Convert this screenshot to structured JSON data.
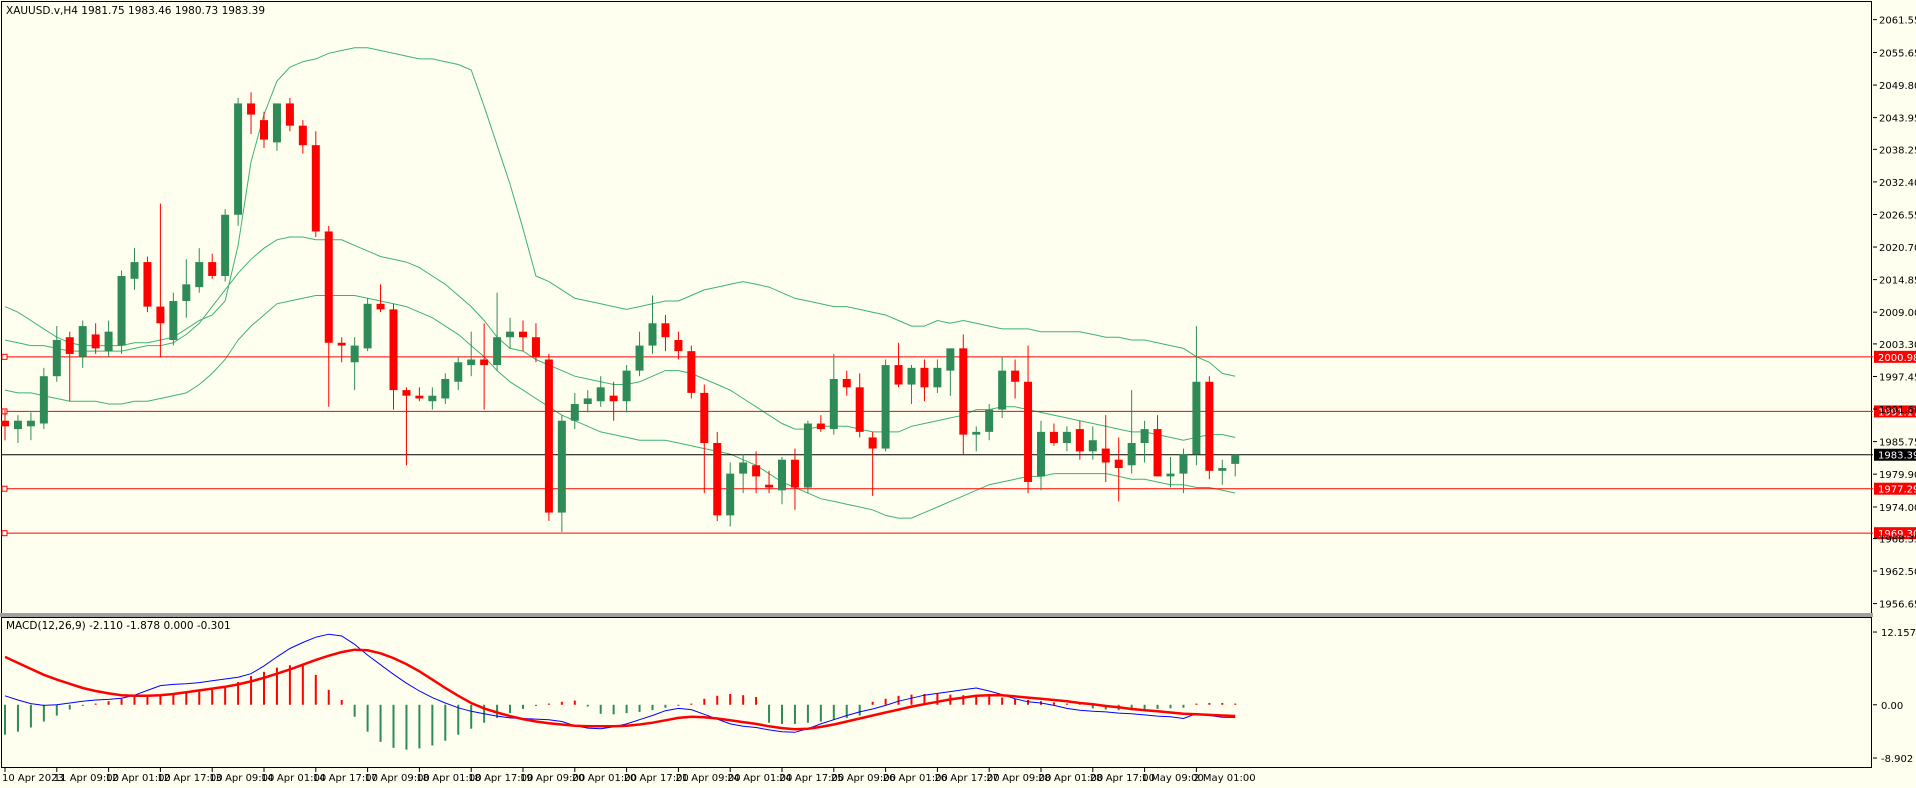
{
  "header": {
    "symbol_line": "XAUUSD.v,H4  1981.75 1983.46 1980.73 1983.39"
  },
  "macd": {
    "title": "MACD(12,26,9) -2.110 -1.878 0.000 -0.301",
    "ticks": [
      "12.157",
      "0.00",
      "-8.902"
    ]
  },
  "colors": {
    "background": "#fffff0",
    "bull": "#2e8b57",
    "bear": "#ff0000",
    "bands": "#3cb371",
    "macd_line": "#0000ff",
    "signal_line": "#ff0000",
    "level_line": "#ff0000",
    "current_line": "#000000"
  },
  "price_axis_ticks": [
    "2061.55",
    "2055.65",
    "2049.80",
    "2043.95",
    "2038.25",
    "2032.40",
    "2026.55",
    "2020.70",
    "2014.85",
    "2009.00",
    "2003.30",
    "1997.45",
    "1991.60",
    "1985.75",
    "1979.90",
    "1974.00",
    "1968.35",
    "1962.50",
    "1956.65"
  ],
  "time_axis_labels": [
    "10 Apr 2023",
    "11 Apr 09:00",
    "12 Apr 01:00",
    "12 Apr 17:00",
    "13 Apr 09:00",
    "14 Apr 01:00",
    "14 Apr 17:00",
    "17 Apr 09:00",
    "18 Apr 01:00",
    "18 Apr 17:00",
    "19 Apr 09:00",
    "20 Apr 01:00",
    "20 Apr 17:00",
    "21 Apr 09:00",
    "24 Apr 01:00",
    "24 Apr 17:00",
    "25 Apr 09:00",
    "26 Apr 01:00",
    "26 Apr 17:00",
    "27 Apr 09:00",
    "28 Apr 01:00",
    "28 Apr 17:00",
    "1 May 09:00",
    "2 May 01:00"
  ],
  "levels": [
    {
      "label": "2000.98",
      "value": 2000.98
    },
    {
      "label": "1991.17",
      "value": 1991.17
    },
    {
      "label": "1977.29",
      "value": 1977.29
    },
    {
      "label": "1969.30",
      "value": 1969.3
    }
  ],
  "current_price": {
    "label": "1983.39",
    "value": 1983.39
  },
  "chart_data": {
    "type": "candlestick",
    "symbol": "XAUUSD.v",
    "timeframe": "H4",
    "ylim": [
      1955.5,
      2064.0
    ],
    "macd_ylim": [
      -9.9,
      14.0
    ],
    "candles": [
      {
        "o": 1989.5,
        "h": 1991.5,
        "l": 1986.0,
        "c": 1988.5
      },
      {
        "o": 1988.0,
        "h": 1990.5,
        "l": 1985.5,
        "c": 1989.5
      },
      {
        "o": 1988.5,
        "h": 1991.0,
        "l": 1986.0,
        "c": 1989.5
      },
      {
        "o": 1989.0,
        "h": 1999.0,
        "l": 1988.0,
        "c": 1997.5
      },
      {
        "o": 1997.5,
        "h": 2006.5,
        "l": 1996.5,
        "c": 2004.0
      },
      {
        "o": 2004.5,
        "h": 2005.5,
        "l": 1993.0,
        "c": 2001.5
      },
      {
        "o": 2001.0,
        "h": 2007.5,
        "l": 1999.0,
        "c": 2006.5
      },
      {
        "o": 2005.0,
        "h": 2007.0,
        "l": 2001.5,
        "c": 2002.5
      },
      {
        "o": 2002.0,
        "h": 2007.5,
        "l": 2001.0,
        "c": 2005.5
      },
      {
        "o": 2003.0,
        "h": 2016.5,
        "l": 2001.5,
        "c": 2015.5
      },
      {
        "o": 2015.0,
        "h": 2020.5,
        "l": 2013.0,
        "c": 2018.0
      },
      {
        "o": 2018.0,
        "h": 2019.0,
        "l": 2009.0,
        "c": 2010.0
      },
      {
        "o": 2010.0,
        "h": 2028.5,
        "l": 2001.0,
        "c": 2007.0
      },
      {
        "o": 2004.0,
        "h": 2012.5,
        "l": 2003.0,
        "c": 2011.0
      },
      {
        "o": 2011.0,
        "h": 2018.5,
        "l": 2008.0,
        "c": 2014.0
      },
      {
        "o": 2013.5,
        "h": 2020.5,
        "l": 2012.5,
        "c": 2018.0
      },
      {
        "o": 2018.0,
        "h": 2019.5,
        "l": 2015.0,
        "c": 2015.5
      },
      {
        "o": 2015.5,
        "h": 2027.5,
        "l": 2014.5,
        "c": 2026.5
      },
      {
        "o": 2026.5,
        "h": 2047.5,
        "l": 2024.5,
        "c": 2046.5
      },
      {
        "o": 2046.5,
        "h": 2048.5,
        "l": 2041.0,
        "c": 2044.5
      },
      {
        "o": 2043.5,
        "h": 2045.0,
        "l": 2038.5,
        "c": 2040.0
      },
      {
        "o": 2039.5,
        "h": 2046.5,
        "l": 2038.0,
        "c": 2046.5
      },
      {
        "o": 2046.5,
        "h": 2047.5,
        "l": 2041.5,
        "c": 2042.5
      },
      {
        "o": 2042.5,
        "h": 2043.5,
        "l": 2037.5,
        "c": 2039.0
      },
      {
        "o": 2039.0,
        "h": 2041.5,
        "l": 2022.5,
        "c": 2023.5
      },
      {
        "o": 2023.5,
        "h": 2024.5,
        "l": 1992.0,
        "c": 2003.5
      },
      {
        "o": 2003.5,
        "h": 2004.5,
        "l": 2000.0,
        "c": 2003.0
      },
      {
        "o": 2000.0,
        "h": 2004.5,
        "l": 1995.0,
        "c": 2003.0
      },
      {
        "o": 2002.5,
        "h": 2011.5,
        "l": 2002.0,
        "c": 2010.5
      },
      {
        "o": 2010.5,
        "h": 2014.0,
        "l": 2009.0,
        "c": 2009.5
      },
      {
        "o": 2009.5,
        "h": 2010.5,
        "l": 1991.5,
        "c": 1995.0
      },
      {
        "o": 1995.0,
        "h": 1995.5,
        "l": 1981.5,
        "c": 1994.0
      },
      {
        "o": 1994.0,
        "h": 1995.5,
        "l": 1993.0,
        "c": 1993.5
      },
      {
        "o": 1993.0,
        "h": 1995.5,
        "l": 1991.5,
        "c": 1994.0
      },
      {
        "o": 1993.5,
        "h": 1998.0,
        "l": 1992.5,
        "c": 1997.0
      },
      {
        "o": 1996.5,
        "h": 2001.0,
        "l": 1995.0,
        "c": 2000.0
      },
      {
        "o": 1999.5,
        "h": 2005.5,
        "l": 1997.5,
        "c": 2000.5
      },
      {
        "o": 2000.5,
        "h": 2007.0,
        "l": 1991.5,
        "c": 1999.5
      },
      {
        "o": 1999.5,
        "h": 2012.5,
        "l": 1998.5,
        "c": 2004.5
      },
      {
        "o": 2004.5,
        "h": 2008.0,
        "l": 2002.5,
        "c": 2005.5
      },
      {
        "o": 2005.5,
        "h": 2007.5,
        "l": 2002.0,
        "c": 2004.5
      },
      {
        "o": 2004.5,
        "h": 2007.0,
        "l": 2000.0,
        "c": 2001.0
      },
      {
        "o": 2000.5,
        "h": 2001.5,
        "l": 1971.5,
        "c": 1973.0
      },
      {
        "o": 1973.0,
        "h": 1990.5,
        "l": 1969.5,
        "c": 1989.5
      },
      {
        "o": 1989.5,
        "h": 1994.5,
        "l": 1988.0,
        "c": 1992.5
      },
      {
        "o": 1992.5,
        "h": 1995.0,
        "l": 1991.0,
        "c": 1993.5
      },
      {
        "o": 1993.0,
        "h": 1997.5,
        "l": 1992.0,
        "c": 1995.5
      },
      {
        "o": 1994.0,
        "h": 1996.5,
        "l": 1989.5,
        "c": 1993.0
      },
      {
        "o": 1993.0,
        "h": 1999.5,
        "l": 1991.0,
        "c": 1998.5
      },
      {
        "o": 1998.5,
        "h": 2005.5,
        "l": 1997.5,
        "c": 2003.0
      },
      {
        "o": 2003.0,
        "h": 2012.0,
        "l": 2001.5,
        "c": 2007.0
      },
      {
        "o": 2007.0,
        "h": 2008.5,
        "l": 2002.0,
        "c": 2004.5
      },
      {
        "o": 2004.0,
        "h": 2005.5,
        "l": 2000.5,
        "c": 2002.0
      },
      {
        "o": 2002.0,
        "h": 2003.0,
        "l": 1993.5,
        "c": 1994.5
      },
      {
        "o": 1994.5,
        "h": 1996.0,
        "l": 1976.5,
        "c": 1985.5
      },
      {
        "o": 1985.5,
        "h": 1987.5,
        "l": 1971.5,
        "c": 1972.5
      },
      {
        "o": 1972.5,
        "h": 1982.0,
        "l": 1970.5,
        "c": 1980.0
      },
      {
        "o": 1980.0,
        "h": 1983.5,
        "l": 1976.5,
        "c": 1982.0
      },
      {
        "o": 1981.5,
        "h": 1984.0,
        "l": 1976.5,
        "c": 1979.5
      },
      {
        "o": 1978.0,
        "h": 1980.5,
        "l": 1976.5,
        "c": 1977.5
      },
      {
        "o": 1977.0,
        "h": 1983.0,
        "l": 1974.5,
        "c": 1982.5
      },
      {
        "o": 1982.5,
        "h": 1984.5,
        "l": 1973.5,
        "c": 1977.5
      },
      {
        "o": 1977.5,
        "h": 1989.5,
        "l": 1976.5,
        "c": 1989.0
      },
      {
        "o": 1989.0,
        "h": 1990.5,
        "l": 1987.5,
        "c": 1988.0
      },
      {
        "o": 1988.0,
        "h": 2001.5,
        "l": 1987.0,
        "c": 1997.0
      },
      {
        "o": 1997.0,
        "h": 1998.5,
        "l": 1994.0,
        "c": 1995.5
      },
      {
        "o": 1995.5,
        "h": 1998.0,
        "l": 1986.5,
        "c": 1987.5
      },
      {
        "o": 1986.5,
        "h": 1987.5,
        "l": 1976.0,
        "c": 1984.5
      },
      {
        "o": 1984.5,
        "h": 2000.5,
        "l": 1984.0,
        "c": 1999.5
      },
      {
        "o": 1999.5,
        "h": 2003.5,
        "l": 1995.5,
        "c": 1996.0
      },
      {
        "o": 1996.0,
        "h": 1999.5,
        "l": 1992.5,
        "c": 1999.0
      },
      {
        "o": 1999.0,
        "h": 2000.5,
        "l": 1993.0,
        "c": 1995.5
      },
      {
        "o": 1995.5,
        "h": 2000.5,
        "l": 1994.5,
        "c": 1999.0
      },
      {
        "o": 1998.5,
        "h": 2002.5,
        "l": 1994.0,
        "c": 2002.5
      },
      {
        "o": 2002.5,
        "h": 2005.0,
        "l": 1983.5,
        "c": 1987.0
      },
      {
        "o": 1987.0,
        "h": 1988.5,
        "l": 1984.0,
        "c": 1987.5
      },
      {
        "o": 1987.5,
        "h": 1992.5,
        "l": 1986.0,
        "c": 1991.5
      },
      {
        "o": 1991.5,
        "h": 2001.0,
        "l": 1990.0,
        "c": 1998.5
      },
      {
        "o": 1998.5,
        "h": 2000.5,
        "l": 1993.5,
        "c": 1996.5
      },
      {
        "o": 1996.5,
        "h": 2003.0,
        "l": 1976.5,
        "c": 1978.5
      },
      {
        "o": 1979.5,
        "h": 1989.5,
        "l": 1977.0,
        "c": 1987.5
      },
      {
        "o": 1987.5,
        "h": 1989.0,
        "l": 1985.0,
        "c": 1985.5
      },
      {
        "o": 1985.5,
        "h": 1988.5,
        "l": 1984.0,
        "c": 1987.5
      },
      {
        "o": 1988.0,
        "h": 1989.5,
        "l": 1982.5,
        "c": 1984.0
      },
      {
        "o": 1984.0,
        "h": 1988.5,
        "l": 1982.5,
        "c": 1986.0
      },
      {
        "o": 1984.5,
        "h": 1990.5,
        "l": 1978.5,
        "c": 1982.0
      },
      {
        "o": 1982.5,
        "h": 1986.5,
        "l": 1975.0,
        "c": 1981.0
      },
      {
        "o": 1981.5,
        "h": 1995.0,
        "l": 1980.0,
        "c": 1985.5
      },
      {
        "o": 1985.5,
        "h": 1989.5,
        "l": 1982.0,
        "c": 1988.0
      },
      {
        "o": 1988.0,
        "h": 1990.5,
        "l": 1980.0,
        "c": 1979.5
      },
      {
        "o": 1979.5,
        "h": 1983.0,
        "l": 1977.5,
        "c": 1980.0
      },
      {
        "o": 1980.0,
        "h": 1984.5,
        "l": 1976.5,
        "c": 1983.5
      },
      {
        "o": 1983.5,
        "h": 2006.5,
        "l": 1981.5,
        "c": 1996.5
      },
      {
        "o": 1996.5,
        "h": 1997.5,
        "l": 1979.0,
        "c": 1980.5
      },
      {
        "o": 1980.5,
        "h": 1982.5,
        "l": 1978.0,
        "c": 1981.0
      },
      {
        "o": 1981.75,
        "h": 1983.46,
        "l": 1979.5,
        "c": 1983.39
      }
    ],
    "bollinger_upper": [
      2010.0,
      2009.0,
      2007.5,
      2006.0,
      2004.5,
      2003.5,
      2003.0,
      2003.0,
      2003.0,
      2003.0,
      2003.5,
      2003.5,
      2004.0,
      2004.5,
      2006.0,
      2007.5,
      2008.5,
      2011.0,
      2021.0,
      2036.0,
      2044.5,
      2050.5,
      2053.0,
      2054.0,
      2054.5,
      2055.5,
      2056.0,
      2056.5,
      2056.5,
      2056.0,
      2055.5,
      2055.0,
      2054.5,
      2054.5,
      2054.0,
      2053.5,
      2052.5,
      2046.0,
      2039.0,
      2032.0,
      2024.0,
      2015.5,
      2014.5,
      2013.0,
      2011.5,
      2011.0,
      2010.5,
      2010.0,
      2009.5,
      2010.0,
      2010.5,
      2011.0,
      2011.0,
      2012.0,
      2013.0,
      2013.5,
      2014.0,
      2014.5,
      2014.0,
      2013.5,
      2012.5,
      2011.5,
      2011.0,
      2010.5,
      2010.0,
      2010.0,
      2009.5,
      2009.0,
      2008.5,
      2007.5,
      2006.5,
      2006.5,
      2007.5,
      2007.0,
      2007.5,
      2007.0,
      2006.5,
      2006.0,
      2006.0,
      2006.0,
      2005.5,
      2005.5,
      2005.5,
      2005.5,
      2005.0,
      2004.5,
      2004.5,
      2004.0,
      2004.0,
      2003.5,
      2003.0,
      2002.5,
      2001.0,
      2000.0,
      1998.0,
      1997.5
    ],
    "bollinger_middle": [
      2004.0,
      2003.5,
      2003.0,
      2003.0,
      2002.5,
      2002.0,
      2002.0,
      2002.0,
      2002.0,
      2002.0,
      2002.5,
      2003.0,
      2003.0,
      2003.5,
      2005.0,
      2007.0,
      2010.0,
      2013.0,
      2016.0,
      2018.5,
      2020.5,
      2022.0,
      2022.5,
      2022.5,
      2022.0,
      2022.0,
      2022.0,
      2021.0,
      2020.0,
      2019.0,
      2018.5,
      2018.0,
      2017.0,
      2015.5,
      2014.0,
      2012.0,
      2010.0,
      2007.5,
      2004.5,
      2002.5,
      2002.0,
      2000.5,
      1999.5,
      1998.5,
      1997.5,
      1997.0,
      1996.5,
      1996.0,
      1996.0,
      1996.5,
      1997.5,
      1998.5,
      1998.5,
      1998.0,
      1997.0,
      1996.0,
      1995.0,
      1993.5,
      1992.0,
      1990.5,
      1989.0,
      1988.0,
      1988.0,
      1988.5,
      1988.5,
      1988.5,
      1988.0,
      1987.5,
      1987.5,
      1987.5,
      1988.5,
      1989.0,
      1989.5,
      1990.0,
      1990.5,
      1991.5,
      1991.5,
      1992.0,
      1992.0,
      1991.5,
      1991.0,
      1990.5,
      1990.0,
      1989.5,
      1989.0,
      1988.5,
      1988.0,
      1987.5,
      1987.5,
      1987.0,
      1986.5,
      1986.0,
      1986.5,
      1987.0,
      1987.0,
      1986.5
    ],
    "bollinger_lower": [
      1995.0,
      1994.5,
      1994.5,
      1994.0,
      1993.5,
      1993.0,
      1993.0,
      1993.0,
      1992.5,
      1992.5,
      1993.0,
      1993.0,
      1993.5,
      1994.0,
      1994.5,
      1996.0,
      1998.0,
      2000.5,
      2004.0,
      2006.5,
      2008.5,
      2010.5,
      2011.0,
      2011.5,
      2012.0,
      2012.0,
      2012.0,
      2012.0,
      2011.5,
      2011.0,
      2010.5,
      2010.0,
      2009.0,
      2008.0,
      2006.5,
      2005.0,
      2003.0,
      2001.0,
      1998.5,
      1996.5,
      1995.0,
      1993.5,
      1992.0,
      1990.5,
      1989.5,
      1988.5,
      1987.5,
      1987.0,
      1986.5,
      1986.0,
      1986.0,
      1986.0,
      1985.5,
      1985.0,
      1984.5,
      1984.0,
      1983.5,
      1982.5,
      1981.5,
      1980.0,
      1978.5,
      1977.5,
      1976.5,
      1975.5,
      1975.0,
      1974.5,
      1974.0,
      1973.5,
      1972.5,
      1972.0,
      1972.0,
      1973.0,
      1974.0,
      1975.0,
      1976.0,
      1977.0,
      1978.0,
      1978.5,
      1979.0,
      1979.5,
      1979.5,
      1980.0,
      1980.0,
      1980.0,
      1980.0,
      1980.0,
      1979.5,
      1979.0,
      1979.0,
      1978.5,
      1978.0,
      1978.0,
      1977.5,
      1977.5,
      1977.0,
      1976.5
    ],
    "macd_histogram": [
      -5.0,
      -4.5,
      -3.8,
      -2.8,
      -1.8,
      -0.8,
      -0.2,
      0.2,
      0.6,
      1.0,
      1.3,
      1.5,
      1.6,
      1.7,
      1.9,
      2.2,
      2.5,
      3.0,
      3.8,
      4.8,
      5.5,
      6.2,
      6.6,
      6.8,
      5.0,
      2.5,
      0.8,
      -2.0,
      -4.5,
      -6.2,
      -7.2,
      -7.5,
      -7.3,
      -6.8,
      -6.0,
      -5.0,
      -4.0,
      -3.0,
      -2.2,
      -1.4,
      -0.7,
      -0.2,
      0.2,
      0.5,
      0.7,
      -0.3,
      -1.5,
      -1.6,
      -1.4,
      -1.2,
      -0.9,
      -0.5,
      -0.2,
      0.2,
      1.0,
      1.5,
      1.8,
      1.6,
      1.3,
      -3.0,
      -3.2,
      -3.2,
      -3.0,
      -2.8,
      -2.5,
      -2.2,
      -1.8,
      0.5,
      1.0,
      1.5,
      1.7,
      1.8,
      1.8,
      1.7,
      1.6,
      1.5,
      1.4,
      1.2,
      1.0,
      0.8,
      0.6,
      0.4,
      0.2,
      0.1,
      -0.6,
      -0.8,
      -0.9,
      -0.9,
      -0.8,
      -0.7,
      -0.6,
      -0.5,
      0.2,
      0.3,
      0.3,
      0.2
    ],
    "macd_line": [
      1.5,
      0.8,
      0.2,
      -0.1,
      0.0,
      0.3,
      0.6,
      0.8,
      0.9,
      1.1,
      1.6,
      2.4,
      3.2,
      3.4,
      3.5,
      3.7,
      4.0,
      4.3,
      4.6,
      5.2,
      6.5,
      8.0,
      9.4,
      10.4,
      11.3,
      11.8,
      11.5,
      10.1,
      8.3,
      6.7,
      5.1,
      3.6,
      2.3,
      1.2,
      0.3,
      -0.5,
      -1.1,
      -1.5,
      -1.9,
      -2.2,
      -2.3,
      -2.4,
      -2.5,
      -2.8,
      -3.5,
      -3.9,
      -4.0,
      -3.7,
      -3.2,
      -2.5,
      -1.8,
      -1.0,
      -0.6,
      -0.8,
      -1.6,
      -2.4,
      -3.2,
      -3.6,
      -3.8,
      -4.2,
      -4.5,
      -4.6,
      -4.0,
      -3.2,
      -2.5,
      -1.8,
      -1.2,
      -0.7,
      -0.1,
      0.6,
      1.1,
      1.6,
      1.9,
      2.2,
      2.5,
      2.8,
      2.3,
      1.7,
      1.0,
      0.5,
      0.3,
      -0.1,
      -0.6,
      -0.9,
      -1.1,
      -1.2,
      -1.4,
      -1.5,
      -1.7,
      -1.9,
      -2.0,
      -2.3,
      -1.5,
      -1.8,
      -2.1,
      -2.11
    ],
    "signal_line": [
      8.0,
      7.0,
      6.0,
      5.0,
      4.2,
      3.5,
      2.8,
      2.3,
      1.9,
      1.6,
      1.5,
      1.5,
      1.6,
      1.8,
      2.1,
      2.4,
      2.7,
      3.0,
      3.4,
      3.9,
      4.5,
      5.2,
      5.9,
      6.7,
      7.5,
      8.2,
      8.8,
      9.2,
      9.1,
      8.6,
      7.8,
      6.8,
      5.6,
      4.2,
      2.8,
      1.5,
      0.3,
      -0.6,
      -1.3,
      -1.9,
      -2.4,
      -2.8,
      -3.1,
      -3.3,
      -3.5,
      -3.6,
      -3.6,
      -3.6,
      -3.5,
      -3.3,
      -3.0,
      -2.6,
      -2.2,
      -2.0,
      -2.1,
      -2.3,
      -2.6,
      -2.9,
      -3.2,
      -3.6,
      -3.9,
      -4.1,
      -4.0,
      -3.7,
      -3.3,
      -2.8,
      -2.3,
      -1.8,
      -1.3,
      -0.8,
      -0.3,
      0.1,
      0.5,
      0.9,
      1.2,
      1.5,
      1.6,
      1.6,
      1.4,
      1.2,
      1.0,
      0.8,
      0.6,
      0.3,
      0.1,
      -0.2,
      -0.4,
      -0.7,
      -0.9,
      -1.1,
      -1.3,
      -1.5,
      -1.6,
      -1.7,
      -1.8,
      -1.878
    ]
  }
}
